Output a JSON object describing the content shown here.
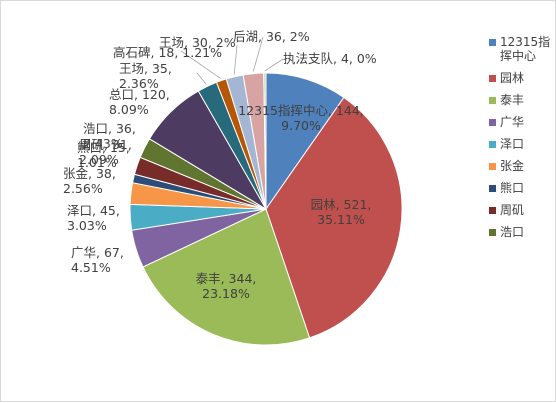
{
  "chart_data": {
    "type": "pie",
    "title": "",
    "series": [
      {
        "name": "12315指挥中心",
        "value": 144,
        "percent": "9.70%",
        "color": "#4F81BD"
      },
      {
        "name": "园林",
        "value": 521,
        "percent": "35.11%",
        "color": "#C0504D"
      },
      {
        "name": "泰丰",
        "value": 344,
        "percent": "23.18%",
        "color": "#9BBB59"
      },
      {
        "name": "广华",
        "value": 67,
        "percent": "4.51%",
        "color": "#8064A2"
      },
      {
        "name": "泽口",
        "value": 45,
        "percent": "3.03%",
        "color": "#4BACC6"
      },
      {
        "name": "张金",
        "value": 38,
        "percent": "2.56%",
        "color": "#F79646"
      },
      {
        "name": "熊口",
        "value": 15,
        "percent": "1.01%",
        "color": "#2C4D75"
      },
      {
        "name": "周矶",
        "value": 31,
        "percent": "2.09%",
        "color": "#772C2A"
      },
      {
        "name": "浩口",
        "value": 36,
        "percent": "2.43%",
        "color": "#5F7530"
      },
      {
        "name": "总口",
        "value": 120,
        "percent": "8.09%",
        "color": "#4D3B62"
      },
      {
        "name": "王场",
        "value": 35,
        "percent": "2.36%",
        "color": "#276A7C"
      },
      {
        "name": "高石碑",
        "value": 18,
        "percent": "1.21%",
        "color": "#B65708"
      },
      {
        "name": "王场",
        "value": 30,
        "percent": "2%",
        "color": "#A5B6D5"
      },
      {
        "name": "后湖",
        "value": 36,
        "percent": "2%",
        "color": "#D7A4A3"
      },
      {
        "name": "执法支队",
        "value": 4,
        "percent": "0%",
        "color": "#C6D6A8"
      }
    ],
    "legend": {
      "position": "right",
      "items": [
        "12315指挥中心",
        "园林",
        "泰丰",
        "广华",
        "泽口",
        "张金",
        "熊口",
        "周矶",
        "浩口"
      ]
    },
    "grid": false
  }
}
